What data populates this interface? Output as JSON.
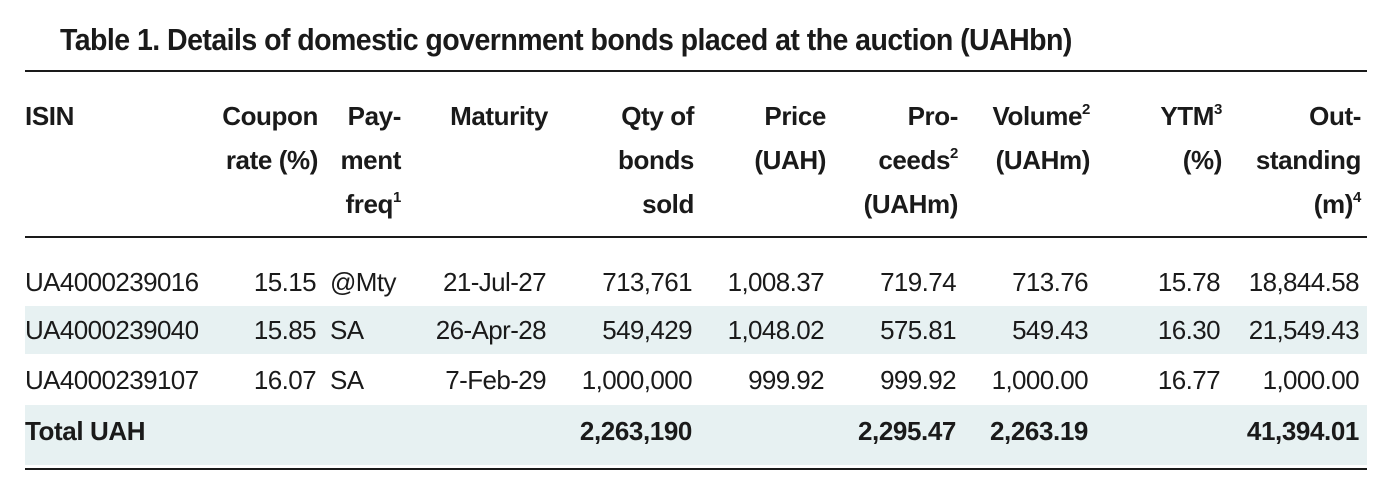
{
  "title": "Table 1. Details of domestic government bonds placed at the auction (UAHbn)",
  "headers": {
    "isin": "ISIN",
    "coupon": "Coupon\nrate (%)",
    "payfreq": "Pay-\nment\nfreq",
    "payfreq_note": "1",
    "maturity": "Maturity",
    "qty": "Qty of\nbonds\nsold",
    "price": "Price\n(UAH)",
    "proceeds_a": "Pro-\nceeds",
    "proceeds_note": "2",
    "proceeds_b": "(UAHm)",
    "volume_a": "Volume",
    "volume_note": "2",
    "volume_b": "(UAHm)",
    "ytm_a": "YTM",
    "ytm_note": "3",
    "ytm_b": "(%)",
    "outstanding_a": "Out-\nstanding\n(m)",
    "outstanding_note": "4"
  },
  "rows": [
    {
      "isin": "UA4000239016",
      "coupon": "15.15",
      "payfreq": "@Mty",
      "maturity": "21-Jul-27",
      "qty": "713,761",
      "price": "1,008.37",
      "proceeds": "719.74",
      "volume": "713.76",
      "ytm": "15.78",
      "outstanding": "18,844.58"
    },
    {
      "isin": "UA4000239040",
      "coupon": "15.85",
      "payfreq": "SA",
      "maturity": "26-Apr-28",
      "qty": "549,429",
      "price": "1,048.02",
      "proceeds": "575.81",
      "volume": "549.43",
      "ytm": "16.30",
      "outstanding": "21,549.43"
    },
    {
      "isin": "UA4000239107",
      "coupon": "16.07",
      "payfreq": "SA",
      "maturity": "7-Feb-29",
      "qty": "1,000,000",
      "price": "999.92",
      "proceeds": "999.92",
      "volume": "1,000.00",
      "ytm": "16.77",
      "outstanding": "1,000.00"
    }
  ],
  "total": {
    "label": "Total UAH",
    "qty": "2,263,190",
    "proceeds": "2,295.47",
    "volume": "2,263.19",
    "outstanding": "41,394.01"
  }
}
